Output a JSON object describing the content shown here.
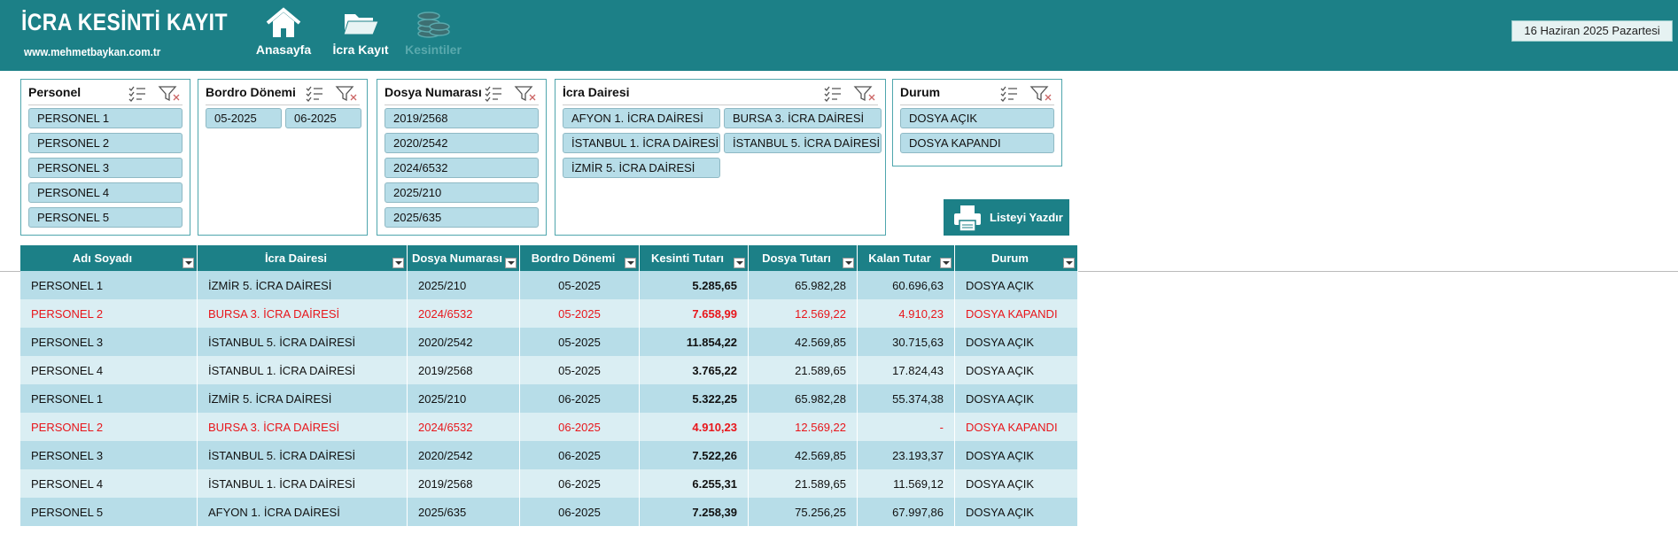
{
  "header": {
    "title": "İCRA KESİNTİ KAYIT",
    "website": "www.mehmetbaykan.com.tr",
    "nav": [
      "Anasayfa",
      "İcra Kayıt",
      "Kesintiler"
    ],
    "date": "16 Haziran 2025 Pazartesi"
  },
  "slicers": [
    {
      "title": "Personel",
      "items": [
        "PERSONEL 1",
        "PERSONEL 2",
        "PERSONEL 3",
        "PERSONEL 4",
        "PERSONEL 5"
      ]
    },
    {
      "title": "Bordro Dönemi",
      "items": [
        "05-2025",
        "06-2025"
      ]
    },
    {
      "title": "Dosya Numarası",
      "items": [
        "2019/2568",
        "2020/2542",
        "2024/6532",
        "2025/210",
        "2025/635"
      ]
    },
    {
      "title": "İcra Dairesi",
      "items": [
        "AFYON 1. İCRA DAİRESİ",
        "BURSA 3. İCRA DAİRESİ",
        "İSTANBUL 1. İCRA DAİRESİ",
        "İSTANBUL 5. İCRA DAİRESİ",
        "İZMİR 5. İCRA DAİRESİ"
      ]
    },
    {
      "title": "Durum",
      "items": [
        "DOSYA AÇIK",
        "DOSYA KAPANDI"
      ]
    }
  ],
  "print_button": "Listeyi Yazdır",
  "table": {
    "columns": [
      "Adı Soyadı",
      "İcra Dairesi",
      "Dosya Numarası",
      "Bordro Dönemi",
      "Kesinti Tutarı",
      "Dosya Tutarı",
      "Kalan Tutar",
      "Durum"
    ],
    "rows": [
      [
        "PERSONEL 1",
        "İZMİR 5. İCRA DAİRESİ",
        "2025/210",
        "05-2025",
        "5.285,65",
        "65.982,28",
        "60.696,63",
        "DOSYA AÇIK"
      ],
      [
        "PERSONEL 2",
        "BURSA 3. İCRA DAİRESİ",
        "2024/6532",
        "05-2025",
        "7.658,99",
        "12.569,22",
        "4.910,23",
        "DOSYA KAPANDI"
      ],
      [
        "PERSONEL 3",
        "İSTANBUL 5. İCRA DAİRESİ",
        "2020/2542",
        "05-2025",
        "11.854,22",
        "42.569,85",
        "30.715,63",
        "DOSYA AÇIK"
      ],
      [
        "PERSONEL 4",
        "İSTANBUL 1. İCRA DAİRESİ",
        "2019/2568",
        "05-2025",
        "3.765,22",
        "21.589,65",
        "17.824,43",
        "DOSYA AÇIK"
      ],
      [
        "PERSONEL 1",
        "İZMİR 5. İCRA DAİRESİ",
        "2025/210",
        "06-2025",
        "5.322,25",
        "65.982,28",
        "55.374,38",
        "DOSYA AÇIK"
      ],
      [
        "PERSONEL 2",
        "BURSA 3. İCRA DAİRESİ",
        "2024/6532",
        "06-2025",
        "4.910,23",
        "12.569,22",
        "-",
        "DOSYA KAPANDI"
      ],
      [
        "PERSONEL 3",
        "İSTANBUL 5. İCRA DAİRESİ",
        "2020/2542",
        "06-2025",
        "7.522,26",
        "42.569,85",
        "23.193,37",
        "DOSYA AÇIK"
      ],
      [
        "PERSONEL 4",
        "İSTANBUL 1. İCRA DAİRESİ",
        "2019/2568",
        "06-2025",
        "6.255,31",
        "21.589,65",
        "11.569,12",
        "DOSYA AÇIK"
      ],
      [
        "PERSONEL 5",
        "AFYON 1. İCRA DAİRESİ",
        "2025/635",
        "06-2025",
        "7.258,39",
        "75.256,25",
        "67.997,86",
        "DOSYA AÇIK"
      ]
    ]
  }
}
